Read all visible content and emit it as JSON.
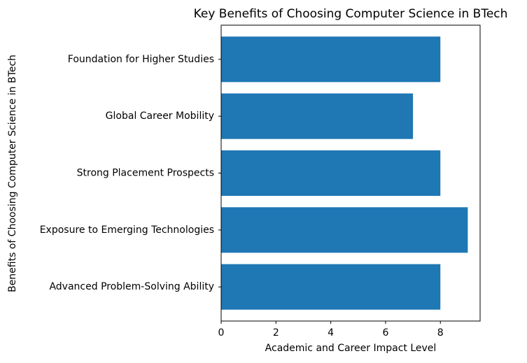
{
  "chart_data": {
    "type": "barh",
    "title": "Key Benefits of Choosing Computer Science in BTech",
    "xlabel": "Academic and Career Impact Level",
    "ylabel": "Benefits of Choosing Computer Science in BTech",
    "categories": [
      "Advanced Problem-Solving Ability",
      "Exposure to Emerging Technologies",
      "Strong Placement Prospects",
      "Global Career Mobility",
      "Foundation for Higher Studies"
    ],
    "values": [
      8,
      9,
      8,
      7,
      8
    ],
    "color": "#1f77b4",
    "xlim": [
      0,
      9.45
    ],
    "xticks": [
      0,
      2,
      4,
      6,
      8
    ]
  }
}
